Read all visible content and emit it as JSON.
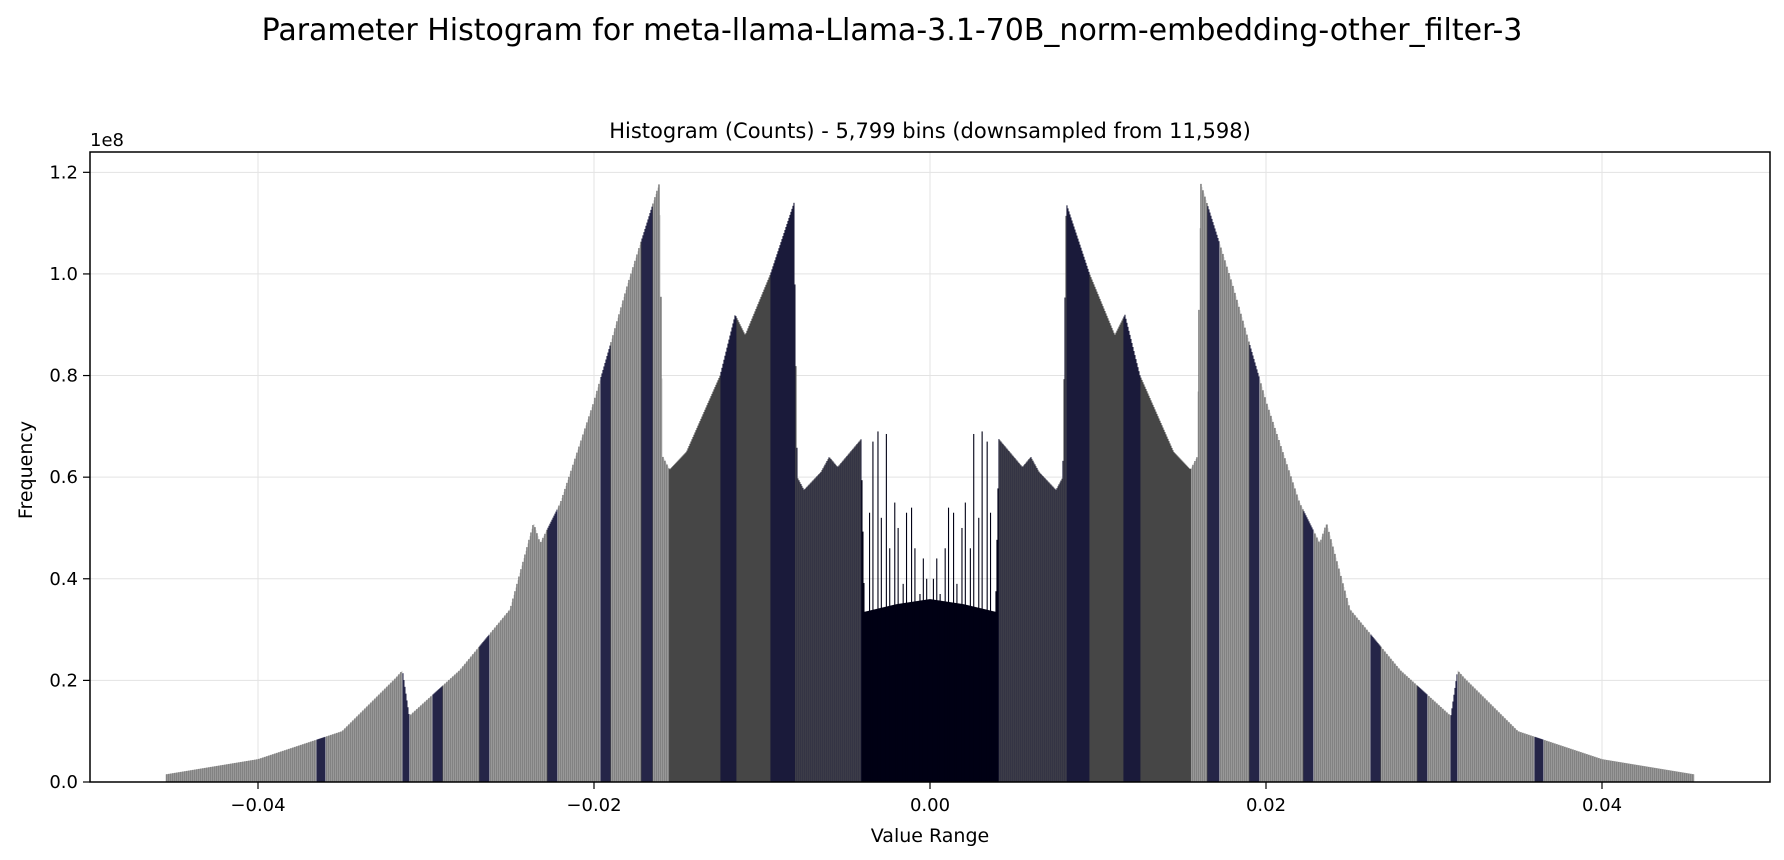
{
  "figure": {
    "suptitle": "Parameter Histogram for meta-llama-Llama-3.1-70B_norm-embedding-other_filter-3"
  },
  "chart_data": {
    "type": "bar",
    "title": "Histogram (Counts) - 5,799 bins (downsampled from 11,598)",
    "xlabel": "Value Range",
    "ylabel": "Frequency",
    "y_offset_label": "1e8",
    "y_scale": 100000000,
    "xlim": [
      -0.05,
      0.05
    ],
    "ylim": [
      0,
      124000000
    ],
    "grid": true,
    "x_ticks": [
      {
        "value": -0.04,
        "label": "−0.04"
      },
      {
        "value": -0.02,
        "label": "−0.02"
      },
      {
        "value": 0.0,
        "label": "0.00"
      },
      {
        "value": 0.02,
        "label": "0.02"
      },
      {
        "value": 0.04,
        "label": "0.04"
      }
    ],
    "y_ticks": [
      {
        "value": 0,
        "label": "0.0"
      },
      {
        "value": 20000000,
        "label": "0.2"
      },
      {
        "value": 40000000,
        "label": "0.4"
      },
      {
        "value": 60000000,
        "label": "0.6"
      },
      {
        "value": 80000000,
        "label": "0.8"
      },
      {
        "value": 100000000,
        "label": "1.0"
      },
      {
        "value": 120000000,
        "label": "1.2"
      }
    ],
    "series_color": "#000014",
    "envelope": {
      "x": [
        0.0,
        0.002,
        0.0039,
        0.0041,
        0.0055,
        0.006,
        0.0065,
        0.0075,
        0.0079,
        0.0081,
        0.0095,
        0.011,
        0.0116,
        0.0125,
        0.0145,
        0.0155,
        0.0159,
        0.0161,
        0.018,
        0.02,
        0.022,
        0.0232,
        0.0236,
        0.025,
        0.028,
        0.031,
        0.0314,
        0.0318,
        0.035,
        0.04,
        0.0455
      ],
      "y": [
        36000000,
        35000000,
        33500000,
        67500000,
        62000000,
        64000000,
        61000000,
        57500000,
        60000000,
        114000000,
        100000000,
        88000000,
        92000000,
        80000000,
        65000000,
        61500000,
        64000000,
        118000000,
        98000000,
        75000000,
        55000000,
        47000000,
        51000000,
        34000000,
        22000000,
        13000000,
        22000000,
        20500000,
        10000000,
        4500000,
        1500000
      ]
    },
    "center_spikes": {
      "x": [
        0.0002,
        0.0004,
        0.0006,
        0.0009,
        0.0011,
        0.0014,
        0.0016,
        0.0019,
        0.0021,
        0.0024,
        0.0026,
        0.0029,
        0.0031,
        0.0034,
        0.0036
      ],
      "y": [
        40000000,
        44000000,
        37000000,
        46000000,
        54000000,
        53000000,
        39000000,
        50000000,
        55000000,
        46000000,
        68500000,
        52000000,
        69000000,
        67000000,
        53000000
      ]
    },
    "dark_bands": [
      [
        -0.0125,
        -0.0115
      ],
      [
        -0.0095,
        -0.008
      ],
      [
        0.008,
        0.0095
      ],
      [
        0.0115,
        0.0125
      ],
      [
        0.0165,
        0.0172
      ],
      [
        0.019,
        0.0196
      ],
      [
        0.0222,
        0.0228
      ],
      [
        0.0262,
        0.0268
      ],
      [
        0.029,
        0.0296
      ],
      [
        0.031,
        0.0314
      ],
      [
        0.036,
        0.0365
      ],
      [
        -0.0172,
        -0.0165
      ],
      [
        -0.0196,
        -0.019
      ],
      [
        -0.0228,
        -0.0222
      ],
      [
        -0.0268,
        -0.0262
      ],
      [
        -0.0296,
        -0.029
      ],
      [
        -0.0314,
        -0.031
      ],
      [
        -0.0365,
        -0.036
      ]
    ],
    "data_range": [
      -0.0456,
      0.0456
    ]
  }
}
